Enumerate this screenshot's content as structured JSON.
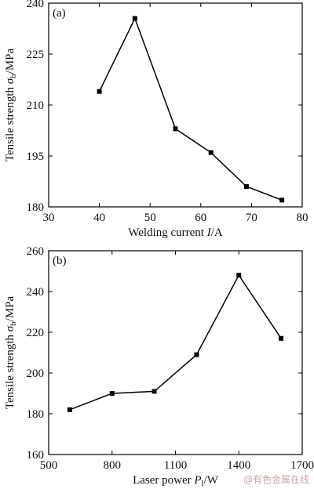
{
  "chart_data": [
    {
      "type": "line",
      "panel_label": "(a)",
      "xlabel": "Welding current I/A",
      "ylabel": "Tensile strength σb/MPa",
      "xlim": [
        30,
        80
      ],
      "ylim": [
        180,
        240
      ],
      "xticks": [
        30,
        40,
        50,
        60,
        70,
        80
      ],
      "yticks": [
        180,
        195,
        210,
        225,
        240
      ],
      "grid": false,
      "series": [
        {
          "x": [
            40,
            47,
            55,
            62,
            69,
            76
          ],
          "y": [
            214,
            235.5,
            203,
            196,
            186,
            182
          ],
          "marker": "square",
          "color": "#000000"
        }
      ]
    },
    {
      "type": "line",
      "panel_label": "(b)",
      "xlabel": "Laser power Pl/W",
      "ylabel": "Tensile strength σb/MPa",
      "xlim": [
        500,
        1700
      ],
      "ylim": [
        160,
        260
      ],
      "xticks": [
        500,
        800,
        1100,
        1400,
        1700
      ],
      "yticks": [
        160,
        180,
        200,
        220,
        240,
        260
      ],
      "grid": false,
      "series": [
        {
          "x": [
            600,
            800,
            1000,
            1200,
            1400,
            1600
          ],
          "y": [
            182,
            190,
            191,
            209,
            248,
            217
          ],
          "marker": "square",
          "color": "#000000"
        }
      ]
    }
  ],
  "watermark": "@有色金属在线"
}
